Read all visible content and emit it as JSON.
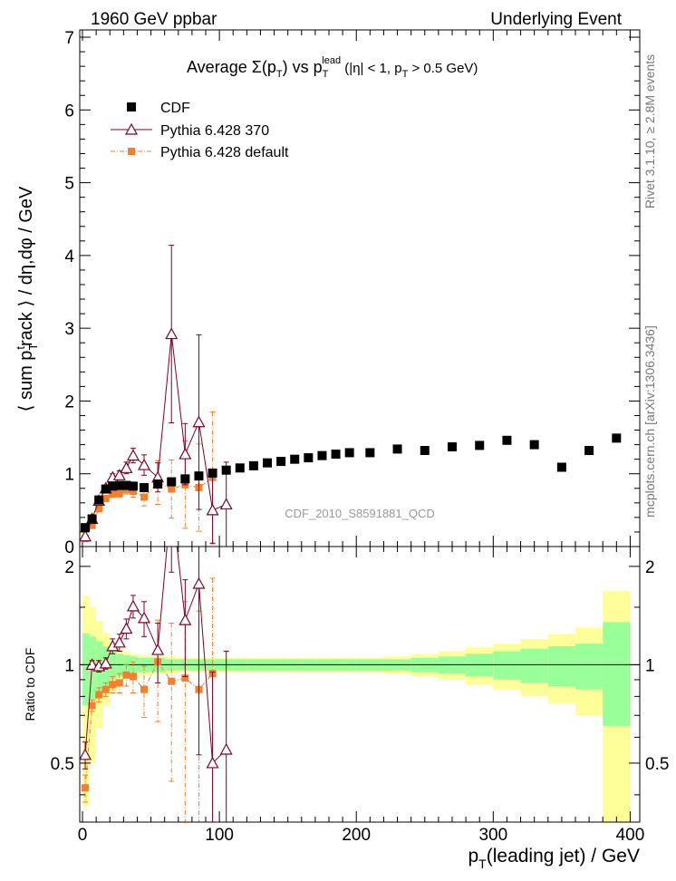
{
  "header": {
    "left_label": "1960 GeV ppbar",
    "right_label": "Underlying Event"
  },
  "side_labels": {
    "rivet": "Rivet 3.1.10, ≥ 2.8M events",
    "mcplots": "mcplots.cern.ch [arXiv:1306.3436]"
  },
  "chart_data": [
    {
      "type": "scatter",
      "title": "Average Σ(p_T) vs p_T^lead (|η| < 1, p_T > 0.5 GeV)",
      "ylabel": "⟨ sum p_T^track ⟩ / dη,dφ / GeV",
      "xlabel": "",
      "analysis_label": "CDF_2010_S8591881_QCD",
      "xlim": [
        -2,
        407
      ],
      "ylim": [
        0,
        7.1
      ],
      "y_ticks": [
        0,
        1,
        2,
        3,
        4,
        5,
        6,
        7
      ],
      "x_ticks": [
        0,
        100,
        200,
        300,
        400
      ],
      "legend_position": "top-left",
      "colors": {
        "cdf": "#000000",
        "pythia370": "#800026",
        "pythiaDefault": "#f47f2c"
      },
      "series": [
        {
          "name": "CDF",
          "marker": "square",
          "points": [
            [
              2,
              0.26
            ],
            [
              7,
              0.38
            ],
            [
              12,
              0.64
            ],
            [
              17,
              0.79
            ],
            [
              22,
              0.83
            ],
            [
              27,
              0.84
            ],
            [
              32,
              0.84
            ],
            [
              37,
              0.83
            ],
            [
              45,
              0.81
            ],
            [
              55,
              0.86
            ],
            [
              65,
              0.89
            ],
            [
              75,
              0.93
            ],
            [
              85,
              0.97
            ],
            [
              95,
              1.01
            ],
            [
              105,
              1.05
            ],
            [
              115,
              1.08
            ],
            [
              125,
              1.11
            ],
            [
              135,
              1.15
            ],
            [
              145,
              1.17
            ],
            [
              155,
              1.2
            ],
            [
              165,
              1.22
            ],
            [
              175,
              1.25
            ],
            [
              185,
              1.27
            ],
            [
              195,
              1.29
            ],
            [
              210,
              1.29
            ],
            [
              230,
              1.34
            ],
            [
              250,
              1.32
            ],
            [
              270,
              1.37
            ],
            [
              290,
              1.39
            ],
            [
              310,
              1.46
            ],
            [
              330,
              1.4
            ],
            [
              350,
              1.09
            ],
            [
              370,
              1.32
            ],
            [
              390,
              1.49
            ]
          ]
        },
        {
          "name": "Pythia 6.428 370",
          "marker": "triangle",
          "points": [
            [
              2,
              0.14
            ],
            [
              7,
              0.38
            ],
            [
              12,
              0.63
            ],
            [
              17,
              0.8
            ],
            [
              22,
              0.95
            ],
            [
              27,
              0.98
            ],
            [
              32,
              1.08
            ],
            [
              37,
              1.25
            ],
            [
              45,
              1.12
            ],
            [
              55,
              0.95
            ],
            [
              65,
              2.92
            ],
            [
              75,
              1.27
            ],
            [
              85,
              1.71
            ],
            [
              95,
              0.5
            ],
            [
              105,
              0.58
            ]
          ],
          "errors": [
            0.01,
            0.02,
            0.03,
            0.04,
            0.05,
            0.06,
            0.08,
            0.1,
            0.14,
            0.2,
            1.22,
            0.42,
            1.2,
            0.46,
            0.58
          ]
        },
        {
          "name": "Pythia 6.428 default",
          "marker": "square",
          "points": [
            [
              2,
              0.11
            ],
            [
              7,
              0.29
            ],
            [
              12,
              0.52
            ],
            [
              17,
              0.66
            ],
            [
              22,
              0.72
            ],
            [
              27,
              0.73
            ],
            [
              32,
              0.78
            ],
            [
              37,
              0.76
            ],
            [
              45,
              0.68
            ],
            [
              55,
              0.88
            ],
            [
              65,
              0.79
            ],
            [
              75,
              0.85
            ],
            [
              85,
              0.81
            ],
            [
              95,
              0.95
            ]
          ],
          "errors": [
            0.01,
            0.02,
            0.03,
            0.03,
            0.04,
            0.05,
            0.06,
            0.08,
            0.12,
            0.3,
            0.4,
            0.6,
            0.6,
            0.9
          ]
        }
      ]
    },
    {
      "type": "line",
      "ylabel": "Ratio to CDF",
      "xlabel": "p_T(leading jet) / GeV",
      "xlim": [
        -2,
        407
      ],
      "ylim": [
        0.33,
        2.3
      ],
      "y_ticks": [
        0.5,
        1,
        2
      ],
      "x_ticks": [
        0,
        100,
        200,
        300,
        400
      ],
      "band_colors": {
        "inner": "#99ff99",
        "outer": "#ffff99"
      },
      "uncertainty_bands": {
        "edges": [
          0,
          5,
          10,
          15,
          20,
          25,
          30,
          35,
          40,
          50,
          60,
          70,
          80,
          90,
          100,
          110,
          120,
          130,
          140,
          150,
          160,
          170,
          180,
          190,
          200,
          220,
          240,
          260,
          280,
          300,
          320,
          340,
          360,
          380,
          400
        ],
        "inner": [
          0.25,
          0.22,
          0.18,
          0.14,
          0.1,
          0.08,
          0.07,
          0.06,
          0.05,
          0.05,
          0.04,
          0.04,
          0.04,
          0.04,
          0.04,
          0.04,
          0.04,
          0.04,
          0.04,
          0.04,
          0.04,
          0.04,
          0.04,
          0.04,
          0.04,
          0.04,
          0.05,
          0.06,
          0.08,
          0.1,
          0.12,
          0.14,
          0.16,
          0.35
        ],
        "outer": [
          0.63,
          0.5,
          0.36,
          0.25,
          0.17,
          0.12,
          0.09,
          0.08,
          0.07,
          0.06,
          0.06,
          0.05,
          0.05,
          0.05,
          0.05,
          0.05,
          0.05,
          0.05,
          0.05,
          0.05,
          0.05,
          0.05,
          0.05,
          0.05,
          0.05,
          0.06,
          0.08,
          0.1,
          0.13,
          0.16,
          0.2,
          0.24,
          0.3,
          0.68
        ]
      },
      "series": [
        {
          "name": "Pythia 6.428 370",
          "marker": "triangle",
          "points": [
            [
              2,
              0.53
            ],
            [
              7,
              1.0
            ],
            [
              12,
              0.99
            ],
            [
              17,
              1.01
            ],
            [
              22,
              1.14
            ],
            [
              27,
              1.17
            ],
            [
              32,
              1.29
            ],
            [
              37,
              1.51
            ],
            [
              45,
              1.39
            ],
            [
              55,
              1.11
            ],
            [
              65,
              3.27
            ],
            [
              75,
              1.37
            ],
            [
              85,
              1.77
            ],
            [
              95,
              0.5
            ],
            [
              105,
              0.55
            ]
          ],
          "errors": [
            0.05,
            0.03,
            0.04,
            0.04,
            0.06,
            0.07,
            0.09,
            0.12,
            0.17,
            0.23,
            1.35,
            0.45,
            1.24,
            0.45,
            0.55
          ]
        },
        {
          "name": "Pythia 6.428 default",
          "marker": "square",
          "points": [
            [
              2,
              0.42
            ],
            [
              7,
              0.75
            ],
            [
              12,
              0.81
            ],
            [
              17,
              0.84
            ],
            [
              22,
              0.87
            ],
            [
              27,
              0.88
            ],
            [
              32,
              0.93
            ],
            [
              37,
              0.92
            ],
            [
              45,
              0.84
            ],
            [
              55,
              1.02
            ],
            [
              65,
              0.89
            ],
            [
              75,
              0.91
            ],
            [
              85,
              0.84
            ],
            [
              95,
              0.94
            ]
          ],
          "errors": [
            0.04,
            0.03,
            0.04,
            0.04,
            0.05,
            0.06,
            0.07,
            0.1,
            0.15,
            0.35,
            0.45,
            0.65,
            0.62,
            0.9
          ]
        }
      ]
    }
  ]
}
